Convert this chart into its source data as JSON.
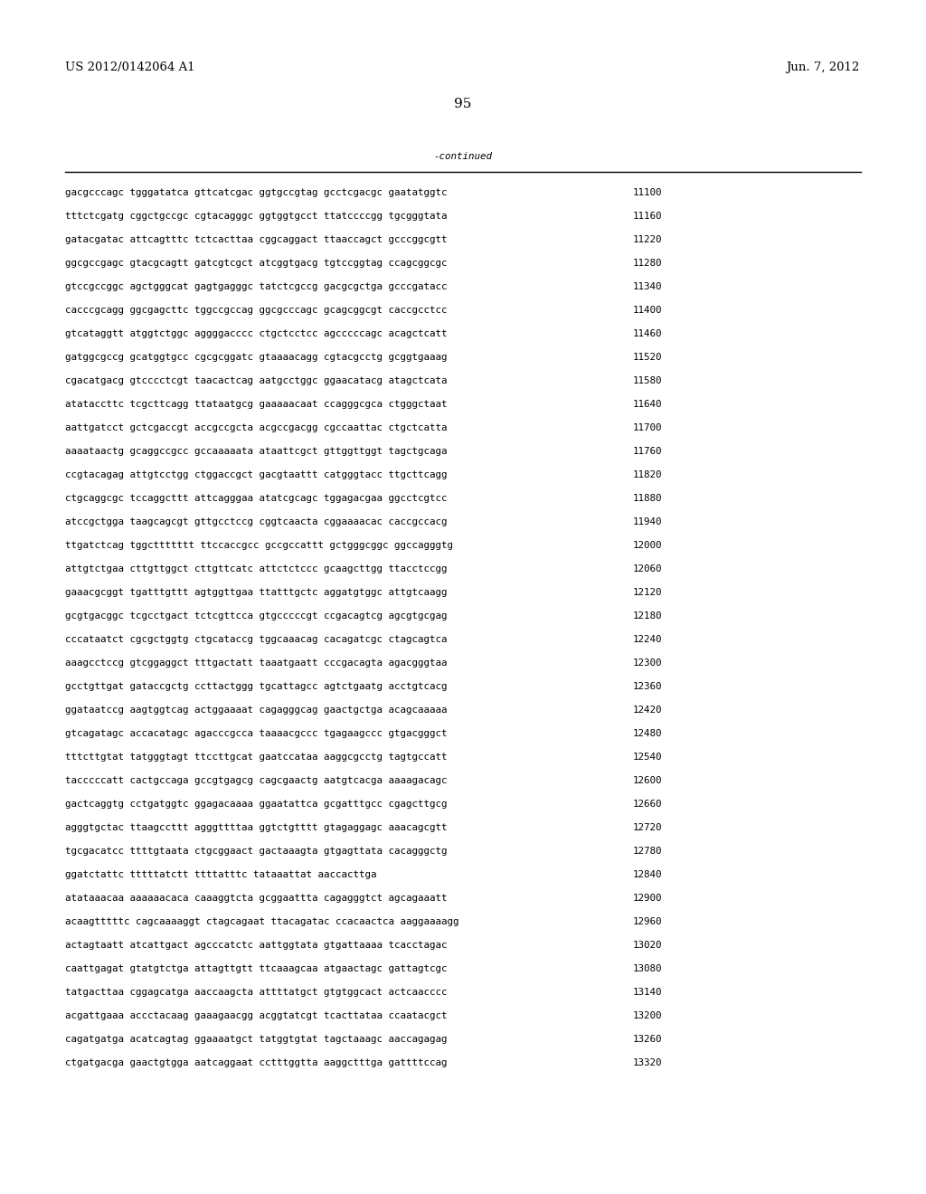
{
  "header_left": "US 2012/0142064 A1",
  "header_right": "Jun. 7, 2012",
  "page_number": "95",
  "continued_label": "-continued",
  "background_color": "#ffffff",
  "text_color": "#000000",
  "font_size_header": 9.5,
  "font_size_body": 7.8,
  "font_size_page": 11,
  "sequence_lines": [
    [
      "gacgcccagc tgggatatca gttcatcgac ggtgccgtag gcctcgacgc gaatatggtc",
      "11100"
    ],
    [
      "tttctcgatg cggctgccgc cgtacagggc ggtggtgcct ttatccccgg tgcgggtata",
      "11160"
    ],
    [
      "gatacgatac attcagtttc tctcacttaa cggcaggact ttaaccagct gcccggcgtt",
      "11220"
    ],
    [
      "ggcgccgagc gtacgcagtt gatcgtcgct atcggtgacg tgtccggtag ccagcggcgc",
      "11280"
    ],
    [
      "gtccgccggc agctgggcat gagtgagggc tatctcgccg gacgcgctga gcccgatacc",
      "11340"
    ],
    [
      "cacccgcagg ggcgagcttc tggccgccag ggcgcccagc gcagcggcgt caccgcctcc",
      "11400"
    ],
    [
      "gtcataggtt atggtctggc aggggacccc ctgctcctcc agcccccagc acagctcatt",
      "11460"
    ],
    [
      "gatggcgccg gcatggtgcc cgcgcggatc gtaaaacagg cgtacgcctg gcggtgaaag",
      "11520"
    ],
    [
      "cgacatgacg gtcccctcgt taacactcag aatgcctggc ggaacatacg atagctcata",
      "11580"
    ],
    [
      "atataccttc tcgcttcagg ttataatgcg gaaaaacaat ccagggcgca ctgggctaat",
      "11640"
    ],
    [
      "aattgatcct gctcgaccgt accgccgcta acgccgacgg cgccaattac ctgctcatta",
      "11700"
    ],
    [
      "aaaataactg gcaggccgcc gccaaaaata ataattcgct gttggttggt tagctgcaga",
      "11760"
    ],
    [
      "ccgtacagag attgtcctgg ctggaccgct gacgtaattt catgggtacc ttgcttcagg",
      "11820"
    ],
    [
      "ctgcaggcgc tccaggcttt attcagggaa atatcgcagc tggagacgaa ggcctcgtcc",
      "11880"
    ],
    [
      "atccgctgga taagcagcgt gttgcctccg cggtcaacta cggaaaacac caccgccacg",
      "11940"
    ],
    [
      "ttgatctcag tggcttttttt ttccaccgcc gccgccattt gctgggcggc ggccagggtg",
      "12000"
    ],
    [
      "attgtctgaa cttgttggct cttgttcatc attctctccc gcaagcttgg ttacctccgg",
      "12060"
    ],
    [
      "gaaacgcggt tgatttgttt agtggttgaa ttatttgctc aggatgtggc attgtcaagg",
      "12120"
    ],
    [
      "gcgtgacggc tcgcctgact tctcgttcca gtgcccccgt ccgacagtcg agcgtgcgag",
      "12180"
    ],
    [
      "cccataatct cgcgctggtg ctgcataccg tggcaaacag cacagatcgc ctagcagtca",
      "12240"
    ],
    [
      "aaagcctccg gtcggaggct tttgactatt taaatgaatt cccgacagta agacgggtaa",
      "12300"
    ],
    [
      "gcctgttgat gataccgctg ccttactggg tgcattagcc agtctgaatg acctgtcacg",
      "12360"
    ],
    [
      "ggataatccg aagtggtcag actggaaaat cagagggcag gaactgctga acagcaaaaa",
      "12420"
    ],
    [
      "gtcagatagc accacatagc agacccgcca taaaacgccc tgagaagccc gtgacgggct",
      "12480"
    ],
    [
      "tttcttgtat tatgggtagt ttccttgcat gaatccataa aaggcgcctg tagtgccatt",
      "12540"
    ],
    [
      "tacccccatt cactgccaga gccgtgagcg cagcgaactg aatgtcacga aaaagacagc",
      "12600"
    ],
    [
      "gactcaggtg cctgatggtc ggagacaaaa ggaatattca gcgatttgcc cgagcttgcg",
      "12660"
    ],
    [
      "agggtgctac ttaagccttt agggttttaa ggtctgtttt gtagaggagc aaacagcgtt",
      "12720"
    ],
    [
      "tgcgacatcc ttttgtaata ctgcggaact gactaaagta gtgagttata cacagggctg",
      "12780"
    ],
    [
      "ggatctattc tttttatctt ttttatttc tataaattat aaccacttga",
      "12840"
    ],
    [
      "atataaacaa aaaaaacaca caaaggtcta gcggaattta cagagggtct agcagaaatt",
      "12900"
    ],
    [
      "acaagtttttc cagcaaaaggt ctagcagaat ttacagatac ccacaactca aaggaaaagg",
      "12960"
    ],
    [
      "actagtaatt atcattgact agcccatctc aattggtata gtgattaaaa tcacctagac",
      "13020"
    ],
    [
      "caattgagat gtatgtctga attagttgtt ttcaaagcaa atgaactagc gattagtcgc",
      "13080"
    ],
    [
      "tatgacttaa cggagcatga aaccaagcta attttatgct gtgtggcact actcaacccc",
      "13140"
    ],
    [
      "acgattgaaa accctacaag gaaagaacgg acggtatcgt tcacttataa ccaatacgct",
      "13200"
    ],
    [
      "cagatgatga acatcagtag ggaaaatgct tatggtgtat tagctaaagc aaccagagag",
      "13260"
    ],
    [
      "ctgatgacga gaactgtgga aatcaggaat cctttggtta aaggctttga gattttccag",
      "13320"
    ]
  ]
}
